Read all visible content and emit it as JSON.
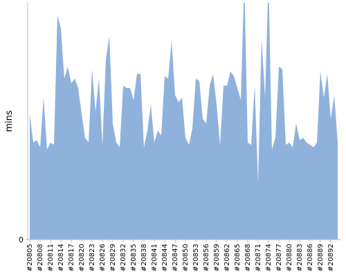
{
  "chart_data": {
    "type": "area",
    "y_label": "mins",
    "color": "#8fb2dc",
    "categories": [
      "#20805",
      null,
      null,
      "#20808",
      null,
      null,
      "#20811",
      null,
      null,
      "#20814",
      null,
      null,
      "#20817",
      null,
      null,
      "#20820",
      null,
      null,
      "#20823",
      null,
      null,
      "#20826",
      null,
      null,
      "#20829",
      null,
      null,
      "#20832",
      null,
      null,
      "#20835",
      null,
      null,
      "#20838",
      null,
      null,
      "#20841",
      null,
      null,
      "#20844",
      null,
      null,
      "#20847",
      null,
      null,
      "#20850",
      null,
      null,
      "#20853",
      null,
      null,
      "#20856",
      null,
      null,
      "#20859",
      null,
      null,
      "#20862",
      null,
      null,
      "#20865",
      null,
      null,
      "#20868",
      null,
      null,
      "#20871",
      null,
      null,
      "#20874",
      null,
      null,
      "#20877",
      null,
      null,
      "#20880",
      null,
      null,
      "#20883",
      null,
      null,
      "#20886",
      null,
      null,
      "#20889",
      null,
      null,
      "#20892",
      null,
      null
    ],
    "values": [
      53,
      41,
      42,
      39,
      60,
      38,
      41,
      40,
      95,
      89,
      68,
      73,
      66,
      68,
      64,
      53,
      43,
      41,
      72,
      54,
      68,
      40,
      76,
      86,
      49,
      41,
      39,
      65,
      64,
      64,
      59,
      70,
      70,
      39,
      46,
      57,
      41,
      46,
      44,
      69,
      68,
      84,
      61,
      58,
      60,
      43,
      40,
      47,
      68,
      67,
      51,
      49,
      65,
      70,
      57,
      40,
      65,
      65,
      71,
      69,
      64,
      59,
      110,
      41,
      40,
      65,
      24,
      85,
      60,
      110,
      38,
      43,
      73,
      72,
      40,
      41,
      39,
      49,
      42,
      43,
      41,
      40,
      39,
      41,
      71,
      60,
      70,
      51,
      61,
      41
    ],
    "ylim": [
      0,
      100
    ],
    "yticks": [
      0
    ]
  }
}
